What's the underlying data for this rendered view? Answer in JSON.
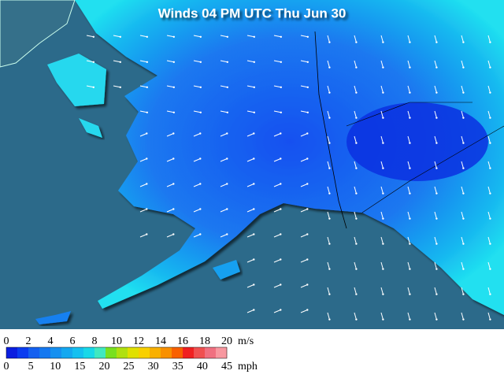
{
  "title": "Winds 04 PM UTC Thu Jun 30",
  "legend": {
    "colors": [
      "#0a1ee0",
      "#0a3cf0",
      "#1460f0",
      "#1478f0",
      "#1690f0",
      "#14a8f0",
      "#14c0f0",
      "#18d8e8",
      "#40e8c0",
      "#78e020",
      "#b0e010",
      "#e0e000",
      "#f8d000",
      "#f8b000",
      "#f89000",
      "#f86000",
      "#f02020",
      "#f05050",
      "#f07080",
      "#f898a0"
    ],
    "ms": {
      "unit": "m/s",
      "ticks": [
        0,
        2,
        4,
        6,
        8,
        10,
        12,
        14,
        16,
        18,
        20
      ]
    },
    "mph": {
      "unit": "mph",
      "ticks": [
        0,
        5,
        10,
        15,
        20,
        25,
        30,
        35,
        40,
        45
      ]
    }
  }
}
